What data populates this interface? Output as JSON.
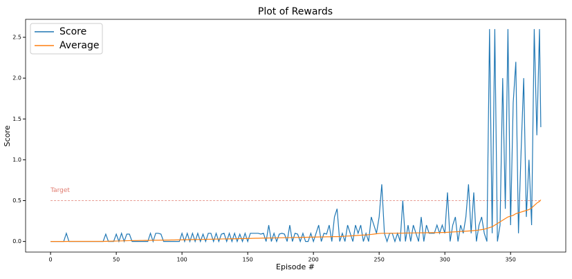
{
  "chart_data": {
    "type": "line",
    "title": "Plot of Rewards",
    "x_label": "Episode #",
    "y_label": "Score",
    "x": [
      0,
      2,
      4,
      6,
      8,
      10,
      12,
      14,
      16,
      18,
      20,
      22,
      24,
      26,
      28,
      30,
      32,
      34,
      36,
      38,
      40,
      42,
      44,
      46,
      48,
      50,
      52,
      54,
      56,
      58,
      60,
      62,
      64,
      66,
      68,
      70,
      72,
      74,
      76,
      78,
      80,
      82,
      84,
      86,
      88,
      90,
      92,
      94,
      96,
      98,
      100,
      102,
      104,
      106,
      108,
      110,
      112,
      114,
      116,
      118,
      120,
      122,
      124,
      126,
      128,
      130,
      132,
      134,
      136,
      138,
      140,
      142,
      144,
      146,
      148,
      150,
      152,
      154,
      156,
      158,
      160,
      162,
      164,
      166,
      168,
      170,
      172,
      174,
      176,
      178,
      180,
      182,
      184,
      186,
      188,
      190,
      192,
      194,
      196,
      198,
      200,
      202,
      204,
      206,
      208,
      210,
      212,
      214,
      216,
      218,
      220,
      222,
      224,
      226,
      228,
      230,
      232,
      234,
      236,
      238,
      240,
      242,
      244,
      246,
      248,
      250,
      252,
      254,
      256,
      258,
      260,
      262,
      264,
      266,
      268,
      270,
      272,
      274,
      276,
      278,
      280,
      282,
      284,
      286,
      288,
      290,
      292,
      294,
      296,
      298,
      300,
      302,
      304,
      306,
      308,
      310,
      312,
      314,
      316,
      318,
      320,
      322,
      324,
      326,
      328,
      330,
      332,
      334,
      336,
      338,
      340,
      342,
      344,
      346,
      348,
      350,
      352,
      354,
      356,
      358,
      360,
      362,
      364,
      366,
      368,
      370,
      372,
      373
    ],
    "series": [
      {
        "name": "Score",
        "color": "#1f77b4",
        "values": [
          0,
          0,
          0,
          0,
          0,
          0,
          0.1,
          0,
          0,
          0,
          0,
          0,
          0,
          0,
          0,
          0,
          0,
          0,
          0,
          0,
          0,
          0.09,
          0,
          0,
          0,
          0.09,
          0,
          0.1,
          0,
          0.09,
          0.09,
          0,
          0,
          0,
          0,
          0,
          0,
          0,
          0.1,
          0,
          0.1,
          0.1,
          0.09,
          0,
          0,
          0,
          0,
          0,
          0,
          0,
          0.1,
          0,
          0.1,
          0,
          0.1,
          0,
          0.1,
          0,
          0.09,
          0,
          0.1,
          0.1,
          0,
          0.1,
          0,
          0.09,
          0.1,
          0,
          0.1,
          0,
          0.1,
          0,
          0.09,
          0,
          0.1,
          0,
          0.1,
          0.1,
          0.1,
          0.1,
          0.09,
          0.1,
          0,
          0.2,
          0,
          0.1,
          0,
          0.09,
          0.1,
          0.09,
          0,
          0.2,
          0,
          0.1,
          0.09,
          0,
          0.1,
          0,
          0,
          0.1,
          0,
          0.1,
          0.2,
          0,
          0.1,
          0.09,
          0.2,
          0,
          0.3,
          0.4,
          0,
          0.1,
          0,
          0.2,
          0.1,
          0,
          0.2,
          0.1,
          0.2,
          0,
          0.1,
          0,
          0.3,
          0.2,
          0.1,
          0.3,
          0.7,
          0.1,
          0,
          0.1,
          0.1,
          0,
          0.1,
          0,
          0.5,
          0,
          0.2,
          0,
          0.2,
          0.1,
          0,
          0.3,
          0,
          0.2,
          0.1,
          0.1,
          0.1,
          0.2,
          0.1,
          0.2,
          0.1,
          0.6,
          0,
          0.2,
          0.3,
          0,
          0.2,
          0.1,
          0.3,
          0.7,
          0.1,
          0.6,
          0,
          0.2,
          0.3,
          0.1,
          0,
          2.6,
          0.1,
          2.6,
          0,
          0.2,
          2.0,
          0.4,
          2.6,
          0.2,
          1.7,
          2.2,
          0.1,
          1.1,
          2.0,
          0.3,
          1.0,
          0.2,
          2.6,
          1.3,
          2.6,
          1.4
        ]
      },
      {
        "name": "Average",
        "color": "#ff7f0e",
        "values": [
          0,
          0,
          0,
          0,
          0,
          0,
          0,
          0.001,
          0.001,
          0.001,
          0.001,
          0.001,
          0.001,
          0.001,
          0.001,
          0.001,
          0.001,
          0.001,
          0.001,
          0.001,
          0.001,
          0.001,
          0.003,
          0.003,
          0.004,
          0.005,
          0.006,
          0.007,
          0.008,
          0.009,
          0.01,
          0.01,
          0.011,
          0.011,
          0.012,
          0.012,
          0.013,
          0.013,
          0.014,
          0.014,
          0.015,
          0.015,
          0.016,
          0.016,
          0.017,
          0.017,
          0.018,
          0.018,
          0.019,
          0.019,
          0.02,
          0.021,
          0.021,
          0.022,
          0.023,
          0.023,
          0.024,
          0.025,
          0.025,
          0.026,
          0.027,
          0.027,
          0.028,
          0.029,
          0.029,
          0.03,
          0.031,
          0.031,
          0.032,
          0.033,
          0.033,
          0.034,
          0.035,
          0.035,
          0.036,
          0.037,
          0.037,
          0.038,
          0.039,
          0.039,
          0.04,
          0.041,
          0.041,
          0.042,
          0.043,
          0.043,
          0.044,
          0.045,
          0.045,
          0.046,
          0.047,
          0.047,
          0.048,
          0.049,
          0.049,
          0.05,
          0.051,
          0.051,
          0.052,
          0.053,
          0.053,
          0.054,
          0.055,
          0.055,
          0.056,
          0.057,
          0.057,
          0.058,
          0.059,
          0.059,
          0.06,
          0.062,
          0.064,
          0.066,
          0.068,
          0.07,
          0.072,
          0.074,
          0.076,
          0.078,
          0.08,
          0.083,
          0.086,
          0.09,
          0.094,
          0.098,
          0.1,
          0.1,
          0.1,
          0.1,
          0.1,
          0.101,
          0.101,
          0.102,
          0.102,
          0.103,
          0.103,
          0.104,
          0.104,
          0.105,
          0.105,
          0.106,
          0.106,
          0.107,
          0.107,
          0.108,
          0.108,
          0.109,
          0.109,
          0.11,
          0.11,
          0.112,
          0.114,
          0.116,
          0.118,
          0.12,
          0.122,
          0.124,
          0.126,
          0.128,
          0.13,
          0.133,
          0.136,
          0.14,
          0.145,
          0.15,
          0.16,
          0.17,
          0.18,
          0.2,
          0.22,
          0.24,
          0.26,
          0.28,
          0.3,
          0.31,
          0.32,
          0.34,
          0.35,
          0.36,
          0.37,
          0.38,
          0.39,
          0.41,
          0.44,
          0.47,
          0.49,
          0.51
        ]
      }
    ],
    "target": {
      "label": "Target",
      "value": 0.5,
      "color": "#e07b6f"
    },
    "xlim": [
      -19,
      392
    ],
    "ylim": [
      -0.13,
      2.72
    ],
    "xticks": [
      0,
      50,
      100,
      150,
      200,
      250,
      300,
      350
    ],
    "yticks": [
      {
        "value": 0,
        "label": "0.0"
      },
      0.5,
      {
        "value": 1,
        "label": "1.0"
      },
      1.5,
      {
        "value": 2,
        "label": "2.0"
      },
      2.5
    ],
    "legend": "upper left"
  }
}
